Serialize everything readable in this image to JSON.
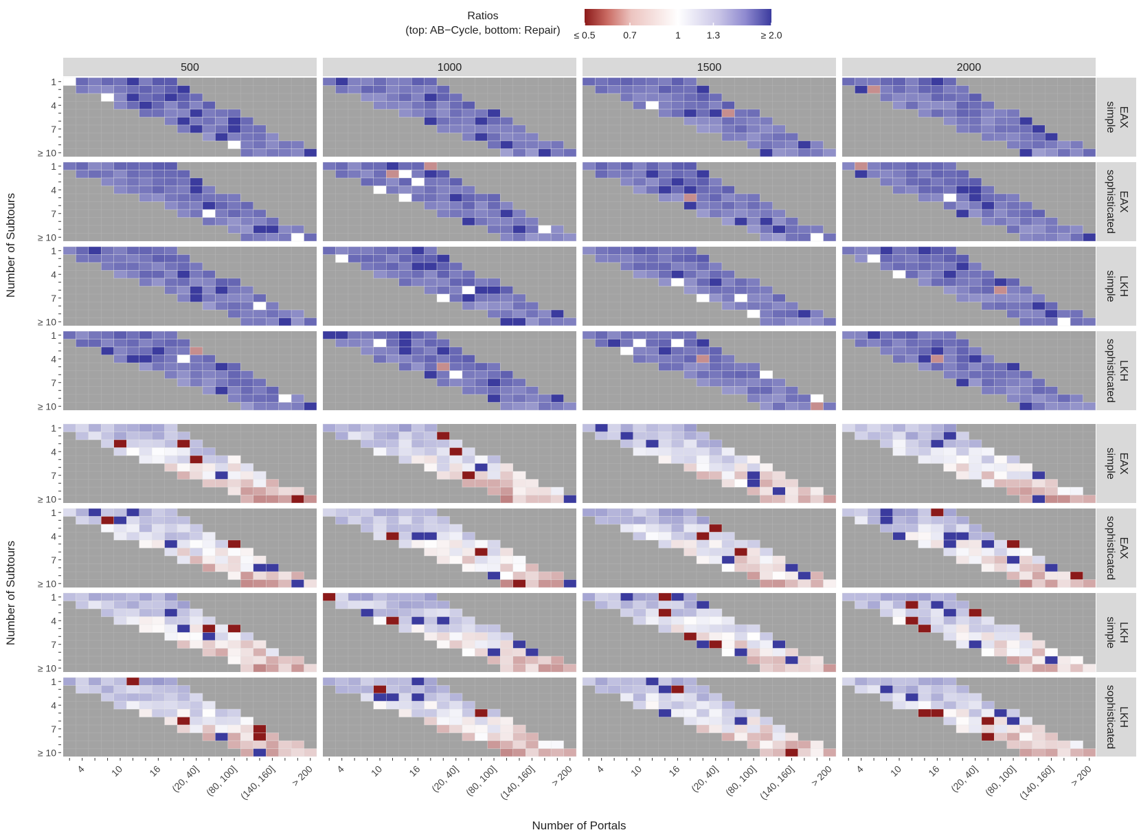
{
  "chart_data": {
    "type": "heatmap",
    "legend": {
      "title_line1": "Ratios",
      "title_line2": "(top: AB−Cycle, bottom: Repair)",
      "tick_labels": [
        "≤ 0.5",
        "0.7",
        "1",
        "1.3",
        "≥ 2.0"
      ],
      "tick_values": [
        0.5,
        0.7,
        1.0,
        1.3,
        2.0
      ],
      "range": [
        0.5,
        2.0
      ],
      "low_color": "#8b1a1a",
      "mid_color": "#ffffff",
      "high_color": "#3b3b9e"
    },
    "column_facets": [
      "500",
      "1000",
      "1500",
      "2000"
    ],
    "row_facets": [
      {
        "algorithm": "EAX",
        "variant": "simple",
        "block": "top"
      },
      {
        "algorithm": "EAX",
        "variant": "sophisticated",
        "block": "top"
      },
      {
        "algorithm": "LKH",
        "variant": "simple",
        "block": "top"
      },
      {
        "algorithm": "LKH",
        "variant": "sophisticated",
        "block": "top"
      },
      {
        "algorithm": "EAX",
        "variant": "simple",
        "block": "bottom"
      },
      {
        "algorithm": "EAX",
        "variant": "sophisticated",
        "block": "bottom"
      },
      {
        "algorithm": "LKH",
        "variant": "simple",
        "block": "bottom"
      },
      {
        "algorithm": "LKH",
        "variant": "sophisticated",
        "block": "bottom"
      }
    ],
    "x_tick_labels": [
      "4",
      "10",
      "16",
      "(20, 40]",
      "(80, 100]",
      "(140, 160]",
      "> 200"
    ],
    "x_tick_positions": [
      2,
      5,
      8,
      11,
      14,
      17,
      20
    ],
    "x_categories_count": 20,
    "y_tick_labels": [
      "1",
      "4",
      "7",
      "≥ 10"
    ],
    "y_tick_positions": [
      1,
      4,
      7,
      10
    ],
    "y_categories_count": 10,
    "xlabel": "Number of Portals",
    "ylabel": "Number of Subtours",
    "empty_cell_color": "#a3a3a3",
    "strip_color": "#d9d9d9",
    "top_block_typical_ratio": "1.3 to 2.0 (mostly above 1, AB-Cycle slower)",
    "bottom_block_typical_ratio": "0.8 to 1.3 (mixed around 1)"
  }
}
